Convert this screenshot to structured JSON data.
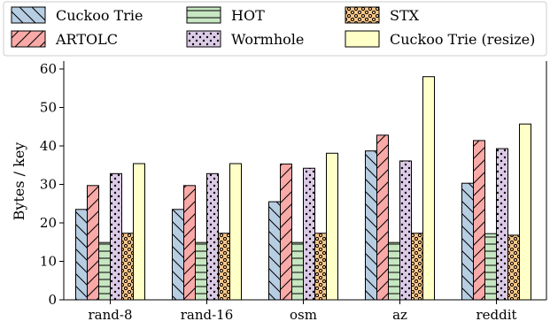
{
  "chart_data": {
    "type": "bar",
    "categories": [
      "rand-8",
      "rand-16",
      "osm",
      "az",
      "reddit"
    ],
    "series": [
      {
        "name": "Cuckoo Trie",
        "values": [
          23.5,
          23.5,
          25.5,
          38.7,
          30.3
        ],
        "color": "#b7cde2",
        "hatch": "backslash"
      },
      {
        "name": "ARTOLC",
        "values": [
          29.7,
          29.7,
          35.3,
          42.8,
          41.4
        ],
        "color": "#f9a9a7",
        "hatch": "slash"
      },
      {
        "name": "HOT",
        "values": [
          14.9,
          14.9,
          14.9,
          14.9,
          17.2
        ],
        "color": "#c7e6c2",
        "hatch": "horizontal"
      },
      {
        "name": "Wormhole",
        "values": [
          32.8,
          32.8,
          34.2,
          36.1,
          39.3
        ],
        "color": "#dccbe6",
        "hatch": "dots"
      },
      {
        "name": "STX",
        "values": [
          17.3,
          17.3,
          17.3,
          17.3,
          16.8
        ],
        "color": "#fbc88a",
        "hatch": "rings"
      },
      {
        "name": "Cuckoo Trie (resize)",
        "values": [
          35.4,
          35.4,
          38.1,
          58.0,
          45.7
        ],
        "color": "#ffffc8",
        "hatch": "none"
      }
    ],
    "title": "",
    "xlabel": "",
    "ylabel": "Bytes / key",
    "ylim": [
      0,
      60
    ],
    "yticks": [
      "0",
      "10",
      "20",
      "30",
      "40",
      "50",
      "60"
    ],
    "grid": false,
    "legend_position": "top"
  }
}
